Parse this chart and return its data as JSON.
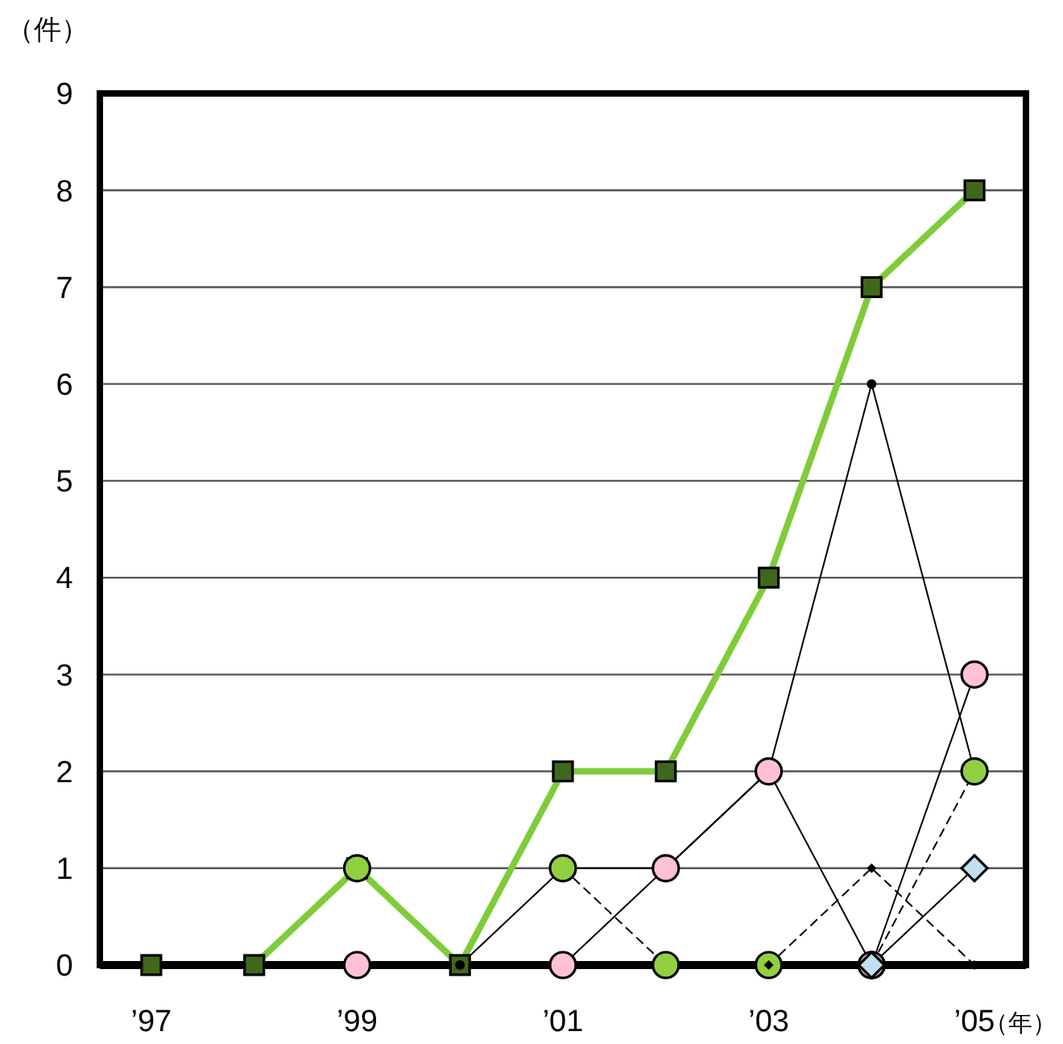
{
  "chart_data": {
    "type": "line",
    "ylabel": "（件）",
    "xlabel": "（年）",
    "categories": [
      "’97",
      null,
      "’99",
      null,
      "’01",
      null,
      "’03",
      null,
      "’05"
    ],
    "ylim": [
      0,
      9
    ],
    "yticks": [
      0,
      1,
      2,
      3,
      4,
      5,
      6,
      7,
      8,
      9
    ],
    "grid": "y",
    "series": [
      {
        "color": "#7fcc3a",
        "marker": "square",
        "line_style": "solid",
        "values": [
          0,
          0,
          1,
          0,
          2,
          2,
          4,
          7,
          8
        ]
      },
      {
        "color": "#000000",
        "marker": "circle",
        "line_style": "solid",
        "values": [
          null,
          null,
          null,
          0,
          1,
          1,
          2,
          6,
          2
        ]
      },
      {
        "color": "#90d040",
        "marker": "circle",
        "line_style": "dashed",
        "values": [
          null,
          null,
          1,
          null,
          1,
          0,
          0,
          0,
          2
        ]
      },
      {
        "color": "#ffc0d8",
        "marker": "circle",
        "line_style": "solid",
        "values": [
          null,
          null,
          0,
          null,
          0,
          1,
          2,
          0,
          3
        ]
      },
      {
        "color": "#000000",
        "marker": "diamond",
        "line_style": "dashed",
        "values": [
          null,
          null,
          null,
          null,
          null,
          null,
          0,
          1,
          0
        ]
      },
      {
        "color": "#c0e0f0",
        "marker": "diamond",
        "line_style": "solid",
        "values": [
          null,
          null,
          null,
          null,
          null,
          null,
          null,
          0,
          1
        ]
      }
    ]
  }
}
